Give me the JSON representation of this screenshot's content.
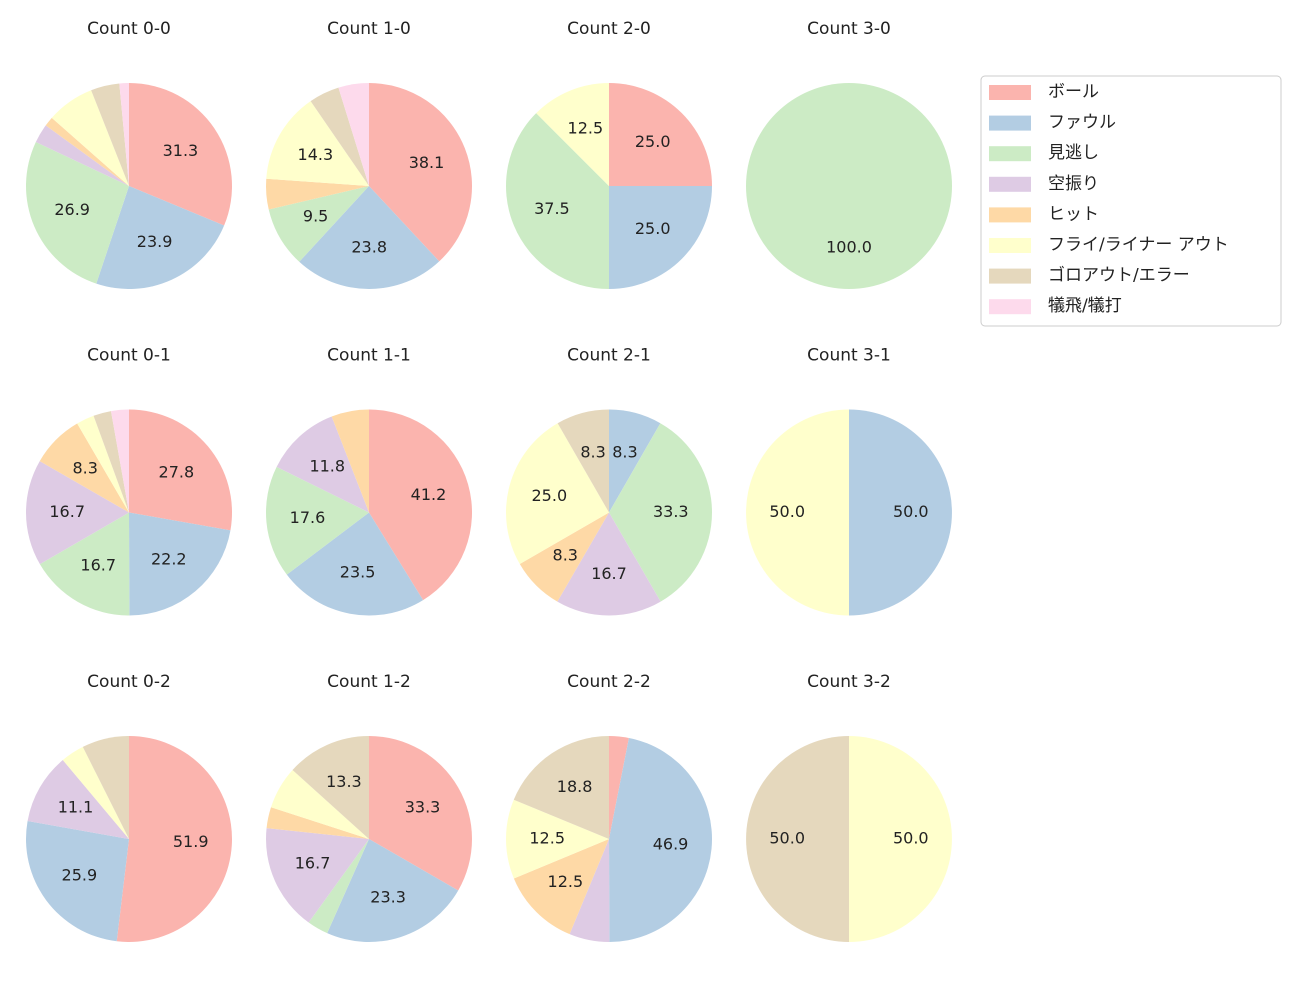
{
  "legend": {
    "labels": [
      "ボール",
      "ファウル",
      "見逃し",
      "空振り",
      "ヒット",
      "フライ/ライナー アウト",
      "ゴロアウト/エラー",
      "犠飛/犠打"
    ],
    "colors": [
      "#fbb4ae",
      "#b3cde3",
      "#ccebc5",
      "#decbe4",
      "#fed9a6",
      "#ffffcc",
      "#e5d8bd",
      "#fddaec"
    ]
  },
  "chart_data": [
    {
      "type": "pie",
      "title": "Count 0-0",
      "values": [
        31.3,
        23.9,
        26.9,
        3.0,
        1.5,
        7.5,
        4.5,
        1.5
      ],
      "value_labels": [
        "31.3",
        "23.9",
        "26.9",
        null,
        null,
        null,
        null,
        null
      ]
    },
    {
      "type": "pie",
      "title": "Count 1-0",
      "values": [
        38.1,
        23.8,
        9.5,
        0,
        4.8,
        14.3,
        4.8,
        4.8
      ],
      "value_labels": [
        "38.1",
        "23.8",
        "9.5",
        null,
        null,
        "14.3",
        null,
        null
      ]
    },
    {
      "type": "pie",
      "title": "Count 2-0",
      "values": [
        25.0,
        25.0,
        37.5,
        0,
        0,
        12.5,
        0,
        0
      ],
      "value_labels": [
        "25.0",
        "25.0",
        "37.5",
        null,
        null,
        "12.5",
        null,
        null
      ]
    },
    {
      "type": "pie",
      "title": "Count 3-0",
      "values": [
        0,
        0,
        100,
        0,
        0,
        0,
        0,
        0
      ],
      "value_labels": [
        null,
        null,
        "100.0",
        null,
        null,
        null,
        null,
        null
      ]
    },
    {
      "type": "pie",
      "title": "Count 0-1",
      "values": [
        27.8,
        22.2,
        16.7,
        16.7,
        8.3,
        2.8,
        2.8,
        2.8
      ],
      "value_labels": [
        "27.8",
        "22.2",
        "16.7",
        "16.7",
        "8.3",
        null,
        null,
        null
      ]
    },
    {
      "type": "pie",
      "title": "Count 1-1",
      "values": [
        41.2,
        23.5,
        17.6,
        11.8,
        5.9,
        0,
        0,
        0
      ],
      "value_labels": [
        "41.2",
        "23.5",
        "17.6",
        "11.8",
        null,
        null,
        null,
        null
      ]
    },
    {
      "type": "pie",
      "title": "Count 2-1",
      "values": [
        0,
        8.3,
        33.3,
        16.7,
        8.3,
        25.0,
        8.3,
        0
      ],
      "value_labels": [
        null,
        "8.3",
        "33.3",
        "16.7",
        "8.3",
        "25.0",
        "8.3",
        null
      ]
    },
    {
      "type": "pie",
      "title": "Count 3-1",
      "values": [
        0,
        50,
        0,
        0,
        0,
        50,
        0,
        0
      ],
      "value_labels": [
        null,
        "50.0",
        null,
        null,
        null,
        "50.0",
        null,
        null
      ]
    },
    {
      "type": "pie",
      "title": "Count 0-2",
      "values": [
        51.9,
        25.9,
        0,
        11.1,
        0,
        3.7,
        7.4,
        0
      ],
      "value_labels": [
        "51.9",
        "25.9",
        null,
        "11.1",
        null,
        null,
        null,
        null
      ]
    },
    {
      "type": "pie",
      "title": "Count 1-2",
      "values": [
        33.3,
        23.3,
        3.3,
        16.7,
        3.3,
        6.7,
        13.3,
        0
      ],
      "value_labels": [
        "33.3",
        "23.3",
        null,
        "16.7",
        null,
        null,
        "13.3",
        null
      ]
    },
    {
      "type": "pie",
      "title": "Count 2-2",
      "values": [
        3.1,
        46.9,
        0,
        6.3,
        12.5,
        12.5,
        18.8,
        0
      ],
      "value_labels": [
        null,
        "46.9",
        null,
        null,
        "12.5",
        "12.5",
        "18.8",
        null
      ]
    },
    {
      "type": "pie",
      "title": "Count 3-2",
      "values": [
        0,
        0,
        0,
        0,
        0,
        50,
        50,
        0
      ],
      "value_labels": [
        null,
        null,
        null,
        null,
        null,
        "50.0",
        "50.0",
        null
      ]
    }
  ]
}
